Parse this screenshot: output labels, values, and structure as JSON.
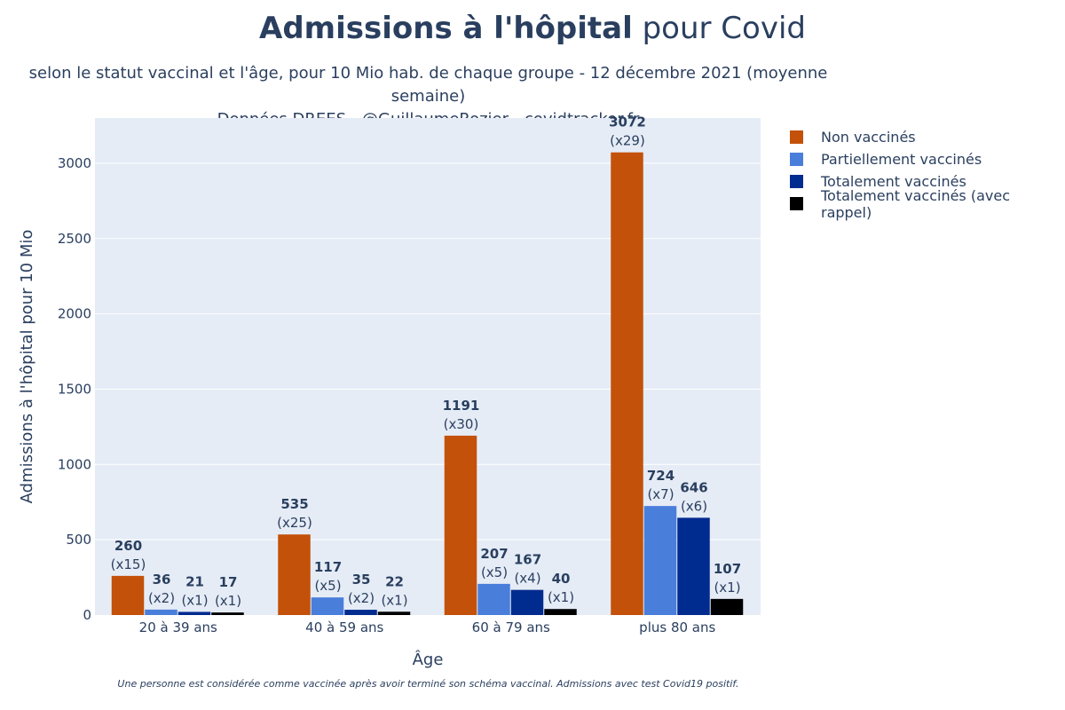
{
  "header": {
    "title_bold": "Admissions à l'hôpital",
    "title_rest": " pour Covid",
    "subtitle_line1": "selon le statut vaccinal et l'âge, pour 10 Mio hab. de chaque groupe - 12 décembre 2021 (moyenne semaine)",
    "subtitle_line2": "Données DREES - @GuillaumeRozier - covidtracker.fr"
  },
  "footnote": "Une personne est considérée comme vaccinée après avoir terminé son schéma vaccinal. Admissions avec test Covid19 positif.",
  "chart_data": {
    "type": "bar",
    "title": "Admissions à l'hôpital pour Covid",
    "xlabel": "Âge",
    "ylabel": "Admissions à l'hôpital pour 10 Mio",
    "ylim": [
      0,
      3300
    ],
    "yticks": [
      0,
      500,
      1000,
      1500,
      2000,
      2500,
      3000
    ],
    "grid": true,
    "legend_position": "right",
    "categories": [
      "20 à 39 ans",
      "40 à 59 ans",
      "60 à 79 ans",
      "plus 80 ans"
    ],
    "series": [
      {
        "name": "Non vaccinés",
        "color": "#c45109",
        "values": [
          260,
          535,
          1191,
          3072
        ],
        "ratios": [
          "(x15)",
          "(x25)",
          "(x30)",
          "(x29)"
        ]
      },
      {
        "name": "Partiellement vaccinés",
        "color": "#4a7edb",
        "values": [
          36,
          117,
          207,
          724
        ],
        "ratios": [
          "(x2)",
          "(x5)",
          "(x5)",
          "(x7)"
        ]
      },
      {
        "name": "Totalement vaccinés",
        "color": "#002b8f",
        "values": [
          21,
          35,
          167,
          646
        ],
        "ratios": [
          "(x1)",
          "(x2)",
          "(x4)",
          "(x6)"
        ]
      },
      {
        "name": "Totalement vaccinés (avec rappel)",
        "color": "#000000",
        "values": [
          17,
          22,
          40,
          107
        ],
        "ratios": [
          "(x1)",
          "(x1)",
          "(x1)",
          "(x1)"
        ]
      }
    ]
  }
}
